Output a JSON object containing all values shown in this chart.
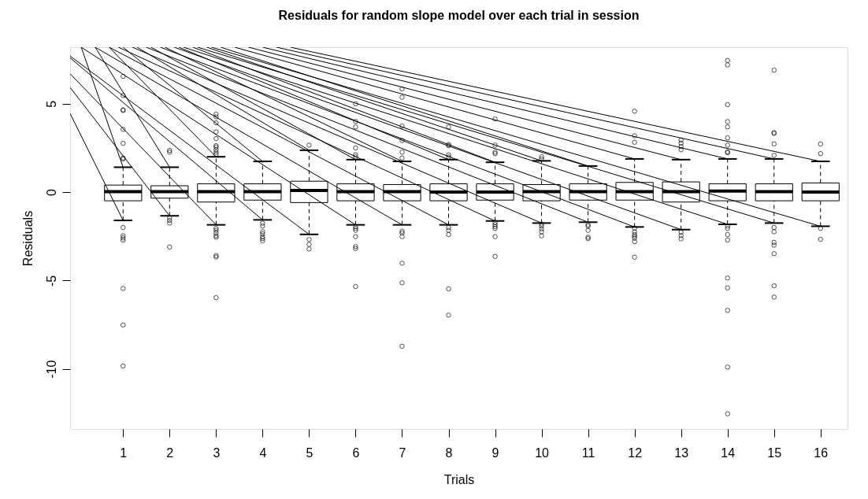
{
  "chart_data": {
    "type": "box",
    "title": "Residuals for random slope model over each trial in session",
    "xlabel": "Trials",
    "ylabel": "Residuals",
    "x": [
      1,
      2,
      3,
      4,
      5,
      6,
      7,
      8,
      9,
      10,
      11,
      12,
      13,
      14,
      15,
      16
    ],
    "xlim": [
      -0.14,
      16.58
    ],
    "ylim": [
      -13.4,
      8.2
    ],
    "xticks": [
      1,
      2,
      3,
      4,
      5,
      6,
      7,
      8,
      9,
      10,
      11,
      12,
      13,
      14,
      15,
      16
    ],
    "yticks": [
      -10,
      -5,
      0,
      5
    ],
    "grid": false,
    "boxes": [
      {
        "low": -1.6,
        "q1": -0.49,
        "median": 0.03,
        "q3": 0.4,
        "high": 1.41,
        "outliers": [
          6.55,
          5.47,
          4.66,
          4.62,
          3.55,
          2.76,
          1.93,
          1.88,
          -2.0,
          -2.47,
          -2.59,
          -2.71,
          -5.45,
          -7.52,
          -9.84
        ]
      },
      {
        "low": -1.34,
        "q1": -0.34,
        "median": 0.03,
        "q3": 0.36,
        "high": 1.41,
        "outliers": [
          2.36,
          2.26,
          -1.45,
          -1.6,
          -1.75,
          -3.11
        ]
      },
      {
        "low": -1.85,
        "q1": -0.56,
        "median": 0.03,
        "q3": 0.47,
        "high": 2.0,
        "outliers": [
          4.41,
          4.26,
          3.92,
          3.41,
          3.03,
          2.63,
          2.55,
          2.4,
          2.26,
          2.14,
          -2.05,
          -2.16,
          -2.31,
          -2.47,
          -2.55,
          -3.59,
          -3.67,
          -5.97
        ]
      },
      {
        "low": -1.57,
        "q1": -0.45,
        "median": 0.03,
        "q3": 0.47,
        "high": 1.74,
        "outliers": [
          -1.76,
          -1.92,
          -2.24,
          -2.36,
          -2.52,
          -2.63,
          -2.75
        ]
      },
      {
        "low": -2.39,
        "q1": -0.59,
        "median": 0.1,
        "q3": 0.62,
        "high": 2.37,
        "outliers": [
          2.66,
          -2.68,
          -2.96,
          -3.22
        ]
      },
      {
        "low": -1.85,
        "q1": -0.49,
        "median": 0.03,
        "q3": 0.47,
        "high": 1.84,
        "outliers": [
          5.0,
          4.0,
          3.69,
          2.5,
          2.11,
          1.99,
          -1.95,
          -2.05,
          -2.16,
          -2.52,
          -3.08,
          -3.19,
          -5.34
        ]
      },
      {
        "low": -1.85,
        "q1": -0.49,
        "median": 0.03,
        "q3": 0.43,
        "high": 1.74,
        "outliers": [
          5.84,
          5.37,
          3.74,
          2.92,
          2.26,
          1.93,
          -2.21,
          -2.31,
          -2.52,
          -4.02,
          -5.13,
          -8.72
        ]
      },
      {
        "low": -1.85,
        "q1": -0.49,
        "median": 0.0,
        "q3": 0.47,
        "high": 1.84,
        "outliers": [
          3.69,
          2.7,
          2.63,
          2.11,
          1.99,
          -2.0,
          -2.16,
          -2.4,
          -5.47,
          -6.96
        ]
      },
      {
        "low": -1.63,
        "q1": -0.45,
        "median": 0.0,
        "q3": 0.47,
        "high": 1.69,
        "outliers": [
          4.14,
          2.66,
          2.26,
          2.18,
          -1.72,
          -1.84,
          -1.95,
          -2.05,
          -2.52,
          -3.64
        ]
      },
      {
        "low": -1.75,
        "q1": -0.49,
        "median": 0.03,
        "q3": 0.43,
        "high": 1.77,
        "outliers": [
          2.0,
          1.88,
          -1.8,
          -1.92,
          -2.08,
          -2.24,
          -2.47
        ]
      },
      {
        "low": -1.7,
        "q1": -0.45,
        "median": 0.03,
        "q3": 0.47,
        "high": 1.48,
        "outliers": [
          -1.84,
          -1.92,
          -2.16,
          -2.55,
          -2.63
        ]
      },
      {
        "low": -1.97,
        "q1": -0.45,
        "median": 0.03,
        "q3": 0.55,
        "high": 1.88,
        "outliers": [
          4.58,
          3.19,
          2.82,
          -2.05,
          -2.25,
          -2.4,
          -2.5,
          -2.6,
          -2.8,
          -3.68
        ]
      },
      {
        "low": -2.12,
        "q1": -0.56,
        "median": 0.03,
        "q3": 0.58,
        "high": 1.84,
        "outliers": [
          2.95,
          2.77,
          2.58,
          2.4,
          -2.27,
          -2.46,
          -2.64
        ]
      },
      {
        "low": -1.82,
        "q1": -0.49,
        "median": 0.06,
        "q3": 0.47,
        "high": 1.88,
        "outliers": [
          7.45,
          7.2,
          4.95,
          3.99,
          3.69,
          3.07,
          2.66,
          2.28,
          2.23,
          -1.92,
          -2.05,
          -2.4,
          -2.71,
          -4.86,
          -5.42,
          -6.69,
          -9.9,
          -12.54
        ]
      },
      {
        "low": -1.75,
        "q1": -0.49,
        "median": 0.03,
        "q3": 0.47,
        "high": 1.88,
        "outliers": [
          6.9,
          3.37,
          3.32,
          2.73,
          2.08,
          -2.0,
          -2.24,
          -2.84,
          -3.0,
          -3.48,
          -5.3,
          -5.94
        ]
      },
      {
        "low": -1.93,
        "q1": -0.49,
        "median": 0.0,
        "q3": 0.52,
        "high": 1.74,
        "outliers": [
          2.73,
          2.18,
          -2.05,
          -2.67
        ]
      }
    ],
    "series": [
      {
        "type": "line",
        "color": "#000000",
        "x": [
          0.1,
          1
        ],
        "values": [
          8.2,
          1.41
        ]
      },
      {
        "type": "line",
        "color": "#000000",
        "x": [
          0.4,
          2
        ],
        "values": [
          8.2,
          1.41
        ]
      },
      {
        "type": "line",
        "color": "#000000",
        "x": [
          0.7,
          3
        ],
        "values": [
          8.2,
          2.0
        ]
      },
      {
        "type": "line",
        "color": "#000000",
        "x": [
          1.0,
          4
        ],
        "values": [
          8.2,
          1.74
        ]
      },
      {
        "type": "line",
        "color": "#000000",
        "x": [
          1.3,
          5
        ],
        "values": [
          8.2,
          2.37
        ]
      },
      {
        "type": "line",
        "color": "#000000",
        "x": [
          1.6,
          6
        ],
        "values": [
          8.2,
          1.84
        ]
      },
      {
        "type": "line",
        "color": "#000000",
        "x": [
          1.9,
          7
        ],
        "values": [
          8.2,
          1.74
        ]
      },
      {
        "type": "line",
        "color": "#000000",
        "x": [
          2.2,
          8
        ],
        "values": [
          8.2,
          1.84
        ]
      },
      {
        "type": "line",
        "color": "#000000",
        "x": [
          2.5,
          9
        ],
        "values": [
          8.2,
          1.69
        ]
      },
      {
        "type": "line",
        "color": "#000000",
        "x": [
          2.8,
          10
        ],
        "values": [
          8.2,
          1.77
        ]
      },
      {
        "type": "line",
        "color": "#000000",
        "x": [
          3.1,
          11
        ],
        "values": [
          8.2,
          1.48
        ]
      },
      {
        "type": "line",
        "color": "#000000",
        "x": [
          3.4,
          12
        ],
        "values": [
          8.2,
          1.88
        ]
      },
      {
        "type": "line",
        "color": "#000000",
        "x": [
          3.7,
          13
        ],
        "values": [
          8.2,
          1.84
        ]
      },
      {
        "type": "line",
        "color": "#000000",
        "x": [
          4.0,
          14
        ],
        "values": [
          8.2,
          1.88
        ]
      },
      {
        "type": "line",
        "color": "#000000",
        "x": [
          4.3,
          15
        ],
        "values": [
          8.2,
          1.88
        ]
      },
      {
        "type": "line",
        "color": "#000000",
        "x": [
          4.6,
          16
        ],
        "values": [
          8.2,
          1.74
        ]
      },
      {
        "type": "line",
        "color": "#000000",
        "x": [
          -0.14,
          1
        ],
        "values": [
          4.45,
          -1.6
        ]
      },
      {
        "type": "line",
        "color": "#000000",
        "x": [
          -0.14,
          2
        ],
        "values": [
          5.92,
          -1.34
        ]
      },
      {
        "type": "line",
        "color": "#000000",
        "x": [
          -0.14,
          3
        ],
        "values": [
          6.7,
          -1.85
        ]
      },
      {
        "type": "line",
        "color": "#000000",
        "x": [
          -0.14,
          4
        ],
        "values": [
          7.6,
          -1.57
        ]
      },
      {
        "type": "line",
        "color": "#000000",
        "x": [
          -0.14,
          5
        ],
        "values": [
          7.7,
          -2.39
        ]
      },
      {
        "type": "line",
        "color": "#000000",
        "x": [
          0.1,
          6
        ],
        "values": [
          8.2,
          -1.85
        ]
      },
      {
        "type": "line",
        "color": "#000000",
        "x": [
          0.4,
          7
        ],
        "values": [
          8.2,
          -1.85
        ]
      },
      {
        "type": "line",
        "color": "#000000",
        "x": [
          0.7,
          8
        ],
        "values": [
          8.2,
          -1.85
        ]
      },
      {
        "type": "line",
        "color": "#000000",
        "x": [
          0.9,
          9
        ],
        "values": [
          8.2,
          -1.63
        ]
      },
      {
        "type": "line",
        "color": "#000000",
        "x": [
          1.2,
          10
        ],
        "values": [
          8.2,
          -1.75
        ]
      },
      {
        "type": "line",
        "color": "#000000",
        "x": [
          1.5,
          11
        ],
        "values": [
          8.2,
          -1.7
        ]
      },
      {
        "type": "line",
        "color": "#000000",
        "x": [
          1.8,
          12
        ],
        "values": [
          8.2,
          -1.97
        ]
      },
      {
        "type": "line",
        "color": "#000000",
        "x": [
          2.1,
          13
        ],
        "values": [
          8.2,
          -2.12
        ]
      },
      {
        "type": "line",
        "color": "#000000",
        "x": [
          2.3,
          14
        ],
        "values": [
          8.2,
          -1.82
        ]
      },
      {
        "type": "line",
        "color": "#000000",
        "x": [
          2.6,
          15
        ],
        "values": [
          8.2,
          -1.75
        ]
      },
      {
        "type": "line",
        "color": "#000000",
        "x": [
          2.9,
          16
        ],
        "values": [
          8.2,
          -1.93
        ]
      }
    ]
  }
}
